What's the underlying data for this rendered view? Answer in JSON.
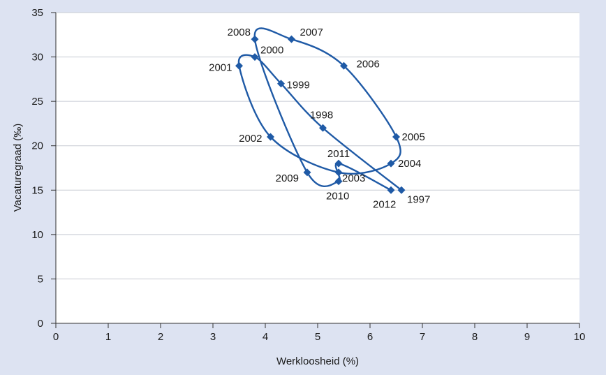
{
  "chart_data": {
    "type": "scatter",
    "title": "",
    "xlabel": "Werkloosheid (%)",
    "ylabel": "Vacaturegraad (‰)",
    "xlim": [
      0,
      10
    ],
    "ylim": [
      0,
      35
    ],
    "xticks": [
      "0",
      "1",
      "2",
      "3",
      "4",
      "5",
      "6",
      "7",
      "8",
      "9",
      "10"
    ],
    "yticks": [
      "0",
      "5",
      "10",
      "15",
      "20",
      "25",
      "30",
      "35"
    ],
    "grid": "horizontal",
    "connected": true,
    "color": "#1f5aa6",
    "points": [
      {
        "label": "1997",
        "x": 6.6,
        "y": 15
      },
      {
        "label": "1998",
        "x": 5.1,
        "y": 22
      },
      {
        "label": "1999",
        "x": 4.3,
        "y": 27
      },
      {
        "label": "2000",
        "x": 3.8,
        "y": 30
      },
      {
        "label": "2001",
        "x": 3.5,
        "y": 29
      },
      {
        "label": "2002",
        "x": 4.1,
        "y": 21
      },
      {
        "label": "2003",
        "x": 5.4,
        "y": 17
      },
      {
        "label": "2004",
        "x": 6.4,
        "y": 18
      },
      {
        "label": "2005",
        "x": 6.5,
        "y": 21
      },
      {
        "label": "2006",
        "x": 5.5,
        "y": 29
      },
      {
        "label": "2007",
        "x": 4.5,
        "y": 32
      },
      {
        "label": "2008",
        "x": 3.8,
        "y": 32
      },
      {
        "label": "2009",
        "x": 4.8,
        "y": 17
      },
      {
        "label": "2010",
        "x": 5.4,
        "y": 16
      },
      {
        "label": "2011",
        "x": 5.4,
        "y": 18
      },
      {
        "label": "2012",
        "x": 6.4,
        "y": 15
      }
    ]
  }
}
